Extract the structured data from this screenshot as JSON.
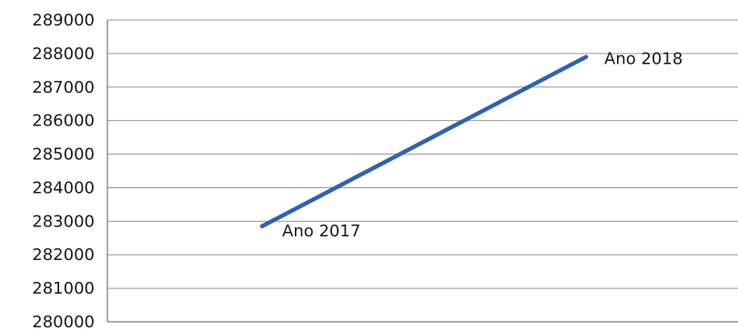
{
  "chart_data": {
    "type": "line",
    "title": "",
    "xlabel": "",
    "ylabel": "",
    "ylim": [
      280000,
      289000
    ],
    "yticks": [
      280000,
      281000,
      282000,
      283000,
      284000,
      285000,
      286000,
      287000,
      288000,
      289000
    ],
    "grid": true,
    "legend": "none",
    "series": [
      {
        "color": "#2e62b0",
        "points": [
          {
            "label": "Ano 2017",
            "y": 282850
          },
          {
            "label": "Ano 2018",
            "y": 287900
          }
        ]
      }
    ]
  }
}
